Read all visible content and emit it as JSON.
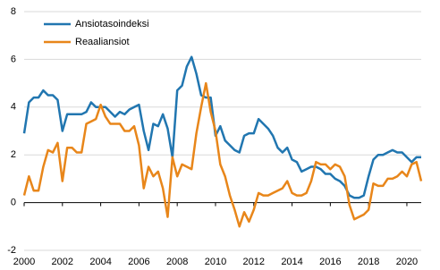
{
  "chart_data": {
    "type": "line",
    "x": [
      2000,
      2000.25,
      2000.5,
      2000.75,
      2001,
      2001.25,
      2001.5,
      2001.75,
      2002,
      2002.25,
      2002.5,
      2002.75,
      2003,
      2003.25,
      2003.5,
      2003.75,
      2004,
      2004.25,
      2004.5,
      2004.75,
      2005,
      2005.25,
      2005.5,
      2005.75,
      2006,
      2006.25,
      2006.5,
      2006.75,
      2007,
      2007.25,
      2007.5,
      2007.75,
      2008,
      2008.25,
      2008.5,
      2008.75,
      2009,
      2009.25,
      2009.5,
      2009.75,
      2010,
      2010.25,
      2010.5,
      2010.75,
      2011,
      2011.25,
      2011.5,
      2011.75,
      2012,
      2012.25,
      2012.5,
      2012.75,
      2013,
      2013.25,
      2013.5,
      2013.75,
      2014,
      2014.25,
      2014.5,
      2014.75,
      2015,
      2015.25,
      2015.5,
      2015.75,
      2016,
      2016.25,
      2016.5,
      2016.75,
      2017,
      2017.25,
      2017.5,
      2017.75,
      2018,
      2018.25,
      2018.5,
      2018.75,
      2019,
      2019.25,
      2019.5,
      2019.75,
      2020,
      2020.25,
      2020.5,
      2020.75
    ],
    "series": [
      {
        "name": "Ansiotasoindeksi",
        "color": "#2176b0",
        "values": [
          2.9,
          4.2,
          4.4,
          4.4,
          4.7,
          4.5,
          4.5,
          4.3,
          3.0,
          3.7,
          3.7,
          3.7,
          3.7,
          3.8,
          4.2,
          4.0,
          4.0,
          4.0,
          3.8,
          3.6,
          3.8,
          3.7,
          3.9,
          4.0,
          4.1,
          3.0,
          2.2,
          3.3,
          3.2,
          3.7,
          3.1,
          1.9,
          4.7,
          4.9,
          5.7,
          6.1,
          5.4,
          4.5,
          4.4,
          4.4,
          2.8,
          3.2,
          2.6,
          2.4,
          2.2,
          2.1,
          2.8,
          2.9,
          2.9,
          3.5,
          3.3,
          3.1,
          2.8,
          2.3,
          2.1,
          2.3,
          1.8,
          1.7,
          1.3,
          1.4,
          1.5,
          1.5,
          1.4,
          1.2,
          1.2,
          1.0,
          0.9,
          0.7,
          0.3,
          0.2,
          0.2,
          0.3,
          1.1,
          1.8,
          2.0,
          2.0,
          2.1,
          2.2,
          2.1,
          2.1,
          1.9,
          1.7,
          1.9,
          1.9
        ]
      },
      {
        "name": "Reaaliansiot",
        "color": "#e8861a",
        "values": [
          0.3,
          1.1,
          0.5,
          0.5,
          1.5,
          2.2,
          2.1,
          2.5,
          0.9,
          2.3,
          2.3,
          2.1,
          2.1,
          3.3,
          3.4,
          3.5,
          4.1,
          3.6,
          3.3,
          3.3,
          3.3,
          3.0,
          3.0,
          3.2,
          2.4,
          0.6,
          1.5,
          1.1,
          1.3,
          0.6,
          -0.6,
          1.9,
          1.1,
          1.6,
          1.5,
          1.4,
          2.9,
          4.0,
          5.0,
          3.8,
          3.0,
          1.6,
          1.1,
          0.3,
          -0.3,
          -1.0,
          -0.4,
          -0.8,
          -0.3,
          0.4,
          0.3,
          0.3,
          0.4,
          0.5,
          0.6,
          0.9,
          0.4,
          0.3,
          0.3,
          0.4,
          0.9,
          1.7,
          1.6,
          1.6,
          1.4,
          1.6,
          1.5,
          1.1,
          -0.1,
          -0.7,
          -0.6,
          -0.5,
          -0.3,
          0.8,
          0.7,
          0.7,
          1.0,
          1.0,
          1.1,
          1.3,
          1.1,
          1.6,
          1.7,
          0.9
        ]
      }
    ],
    "xlim": [
      2000,
      2020.75
    ],
    "xticks": [
      2000,
      2002,
      2004,
      2006,
      2008,
      2010,
      2012,
      2014,
      2016,
      2018,
      2020
    ],
    "ylim": [
      -2,
      8
    ],
    "yticks": [
      -2,
      0,
      2,
      4,
      6,
      8
    ],
    "grid": true,
    "legend": "upper left"
  }
}
